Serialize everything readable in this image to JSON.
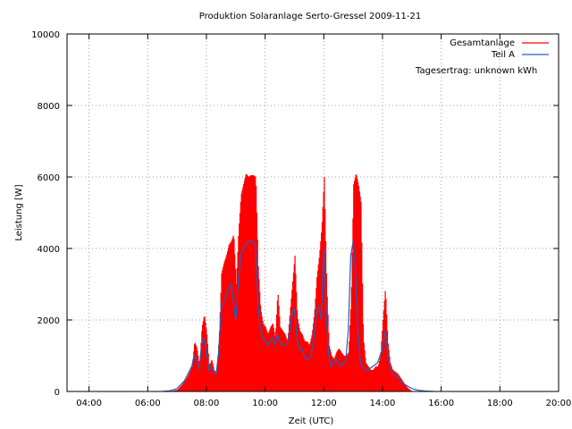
{
  "chart_data": {
    "type": "area",
    "title": "Produktion Solaranlage Serto-Gressel 2009-11-21",
    "xlabel": "Zeit (UTC)",
    "ylabel": "Leistung [W]",
    "xlim": [
      "03:15",
      "20:00"
    ],
    "ylim": [
      0,
      10000
    ],
    "x_ticks": [
      "04:00",
      "06:00",
      "08:00",
      "10:00",
      "12:00",
      "14:00",
      "16:00",
      "18:00",
      "20:00"
    ],
    "y_ticks": [
      0,
      2000,
      4000,
      6000,
      8000,
      10000
    ],
    "grid": true,
    "legend_position": "top-right",
    "annotation": "Tagesertrag: unknown kWh",
    "series": [
      {
        "name": "Gesamtanlage",
        "style": "filled-impulses",
        "color": "#ff0000",
        "x": [
          "06:45",
          "07:00",
          "07:10",
          "07:20",
          "07:30",
          "07:35",
          "07:40",
          "07:45",
          "07:50",
          "07:55",
          "08:00",
          "08:05",
          "08:10",
          "08:15",
          "08:20",
          "08:25",
          "08:30",
          "08:35",
          "08:40",
          "08:45",
          "08:50",
          "08:55",
          "09:00",
          "09:05",
          "09:10",
          "09:15",
          "09:20",
          "09:25",
          "09:30",
          "09:35",
          "09:40",
          "09:45",
          "09:50",
          "09:55",
          "10:00",
          "10:05",
          "10:10",
          "10:15",
          "10:20",
          "10:25",
          "10:30",
          "10:35",
          "10:40",
          "10:45",
          "10:50",
          "10:55",
          "11:00",
          "11:05",
          "11:10",
          "11:15",
          "11:20",
          "11:25",
          "11:30",
          "11:35",
          "11:40",
          "11:45",
          "11:50",
          "11:55",
          "12:00",
          "12:05",
          "12:10",
          "12:15",
          "12:20",
          "12:25",
          "12:30",
          "12:35",
          "12:40",
          "12:45",
          "12:50",
          "12:55",
          "13:00",
          "13:05",
          "13:10",
          "13:15",
          "13:20",
          "13:25",
          "13:30",
          "13:35",
          "13:40",
          "13:45",
          "13:50",
          "13:55",
          "14:00",
          "14:05",
          "14:10",
          "14:15",
          "14:20",
          "14:30",
          "14:40",
          "14:50",
          "15:00",
          "15:15",
          "15:30",
          "15:45"
        ],
        "y": [
          0,
          50,
          200,
          400,
          700,
          1400,
          1200,
          700,
          1800,
          2150,
          1600,
          700,
          900,
          600,
          500,
          1500,
          3300,
          3600,
          3800,
          4100,
          4200,
          4400,
          3000,
          4500,
          5500,
          5800,
          6100,
          6000,
          6050,
          6050,
          6000,
          3500,
          2300,
          1900,
          1800,
          1600,
          1800,
          1900,
          1500,
          2800,
          1800,
          1700,
          1600,
          1400,
          2200,
          3000,
          3800,
          2100,
          1700,
          1600,
          1400,
          1400,
          1300,
          1600,
          2200,
          3200,
          3800,
          4600,
          6000,
          3000,
          1300,
          1000,
          900,
          1100,
          1200,
          1100,
          1000,
          1000,
          1100,
          2600,
          5800,
          6100,
          5800,
          5300,
          1500,
          800,
          700,
          600,
          600,
          700,
          700,
          1000,
          2000,
          2900,
          1400,
          800,
          600,
          500,
          300,
          100,
          0,
          0,
          0,
          0
        ]
      },
      {
        "name": "Teil A",
        "style": "line",
        "color": "#2060c0",
        "x": [
          "06:30",
          "06:45",
          "07:00",
          "07:15",
          "07:30",
          "07:35",
          "07:40",
          "07:45",
          "07:50",
          "07:55",
          "08:00",
          "08:05",
          "08:10",
          "08:15",
          "08:20",
          "08:25",
          "08:30",
          "08:40",
          "08:50",
          "09:00",
          "09:05",
          "09:10",
          "09:15",
          "09:20",
          "09:25",
          "09:30",
          "09:35",
          "09:40",
          "09:45",
          "09:50",
          "09:55",
          "10:00",
          "10:05",
          "10:10",
          "10:15",
          "10:20",
          "10:25",
          "10:30",
          "10:35",
          "10:40",
          "10:45",
          "10:50",
          "10:55",
          "11:00",
          "11:05",
          "11:10",
          "11:15",
          "11:20",
          "11:25",
          "11:30",
          "11:35",
          "11:40",
          "11:45",
          "11:50",
          "11:55",
          "12:00",
          "12:05",
          "12:10",
          "12:15",
          "12:20",
          "12:25",
          "12:30",
          "12:35",
          "12:40",
          "12:45",
          "12:50",
          "12:55",
          "13:00",
          "13:05",
          "13:10",
          "13:15",
          "13:20",
          "13:25",
          "13:30",
          "13:40",
          "13:50",
          "14:00",
          "14:05",
          "14:10",
          "14:15",
          "14:20",
          "14:30",
          "14:45",
          "15:00",
          "15:15",
          "15:30",
          "15:45"
        ],
        "y": [
          0,
          20,
          80,
          300,
          700,
          1000,
          900,
          600,
          1300,
          1500,
          1100,
          600,
          700,
          500,
          500,
          1100,
          2300,
          2700,
          3000,
          2000,
          3000,
          3800,
          4000,
          4100,
          4200,
          4200,
          4200,
          4150,
          2500,
          1800,
          1500,
          1400,
          1300,
          1400,
          1500,
          1300,
          1600,
          1400,
          1300,
          1300,
          1300,
          1700,
          2200,
          2300,
          1500,
          1200,
          1200,
          1000,
          900,
          900,
          1100,
          1500,
          2200,
          2400,
          2000,
          4000,
          2100,
          1000,
          700,
          800,
          900,
          800,
          700,
          800,
          900,
          1700,
          3800,
          4200,
          3300,
          1600,
          800,
          700,
          600,
          600,
          700,
          800,
          1200,
          1700,
          1100,
          700,
          500,
          400,
          200,
          80,
          30,
          10,
          0
        ]
      }
    ]
  }
}
